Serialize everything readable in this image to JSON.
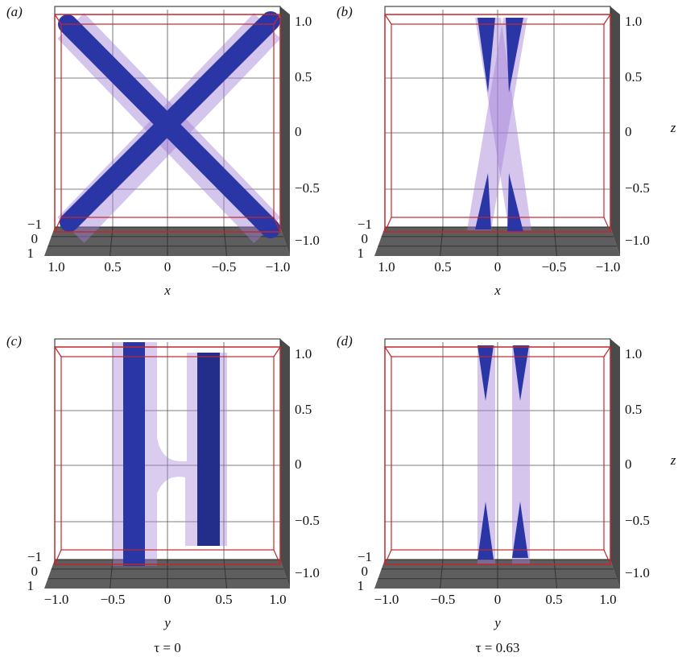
{
  "panels": [
    {
      "label": "(a)",
      "axis_label": "x",
      "hticks": [
        "1.0",
        "0.5",
        "0",
        "−0.5",
        "−1.0"
      ],
      "zticks": [
        "1.0",
        "0.5",
        "0",
        "−0.5",
        "−1.0"
      ],
      "depth_ticks": [
        "−1",
        "0",
        "1"
      ]
    },
    {
      "label": "(b)",
      "axis_label": "x",
      "hticks": [
        "1.0",
        "0.5",
        "0",
        "−0.5",
        "−1.0"
      ],
      "zticks": [
        "1.0",
        "0.5",
        "0",
        "−0.5",
        "−1.0"
      ],
      "depth_ticks": [
        "−1",
        "0",
        "1"
      ],
      "zlabel": "z"
    },
    {
      "label": "(c)",
      "axis_label": "y",
      "hticks": [
        "−1.0",
        "−0.5",
        "0",
        "0.5",
        "1.0"
      ],
      "zticks": [
        "1.0",
        "0.5",
        "0",
        "−0.5",
        "−1.0"
      ],
      "depth_ticks": [
        "−1",
        "0",
        "1"
      ]
    },
    {
      "label": "(d)",
      "axis_label": "y",
      "hticks": [
        "−1.0",
        "−0.5",
        "0",
        "0.5",
        "1.0"
      ],
      "zticks": [
        "1.0",
        "0.5",
        "0",
        "−0.5",
        "−1.0"
      ],
      "depth_ticks": [
        "−1",
        "0",
        "1"
      ],
      "zlabel": "z"
    }
  ],
  "captions": [
    "τ = 0",
    "τ = 0.63"
  ]
}
